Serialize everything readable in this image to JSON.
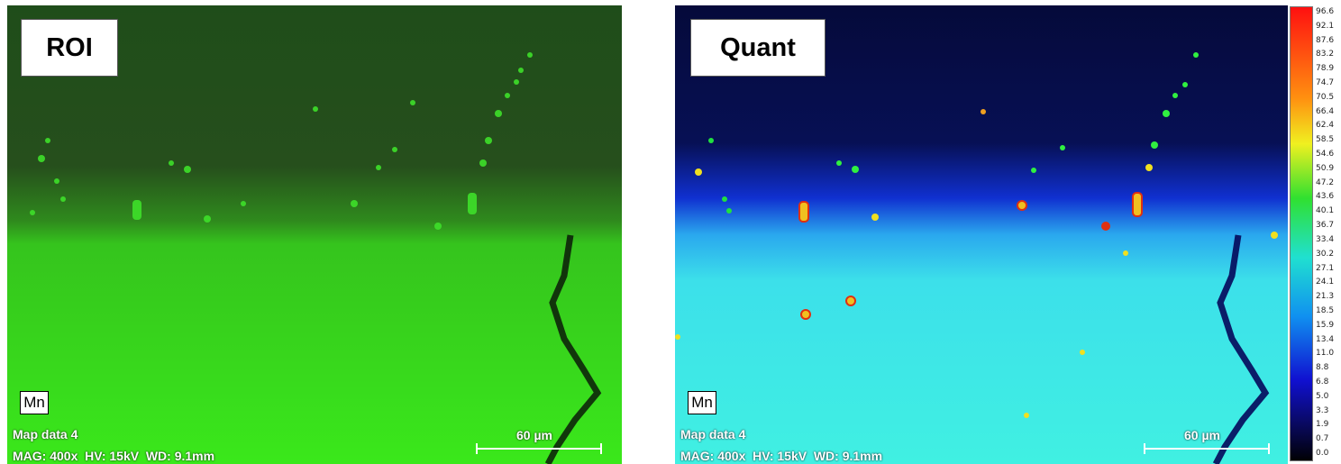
{
  "roi": {
    "label": "ROI",
    "element": "Mn",
    "map_name": "Map data 4",
    "params": "MAG: 400x  HV: 15kV  WD: 9.1mm",
    "scale": "60 µm"
  },
  "quant": {
    "label": "Quant",
    "element": "Mn",
    "map_name": "Map data 4",
    "params": "MAG: 400x  HV: 15kV  WD: 9.1mm",
    "scale": "60 µm"
  },
  "colors": {
    "roi_dark": "#1f4d1a",
    "roi_bright": "#38e81a",
    "quant_dark": "#050a3a",
    "quant_bright": "#3ff0e6"
  },
  "color_scale": {
    "ticks": [
      "96.6",
      "92.1",
      "87.6",
      "83.2",
      "78.9",
      "74.7",
      "70.5",
      "66.4",
      "62.4",
      "58.5",
      "54.6",
      "50.9",
      "47.2",
      "43.6",
      "40.1",
      "36.7",
      "33.4",
      "30.2",
      "27.1",
      "24.1",
      "21.3",
      "18.5",
      "15.9",
      "13.4",
      "11.0",
      "8.8",
      "6.8",
      "5.0",
      "3.3",
      "1.9",
      "0.7",
      "0.0"
    ]
  }
}
